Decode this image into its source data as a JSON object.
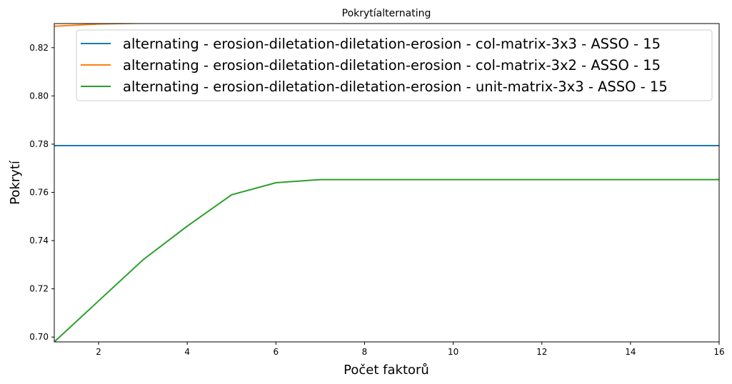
{
  "chart_data": {
    "type": "line",
    "title": "Pokrytíalternating",
    "xlabel": "Počet faktorů",
    "ylabel": "Pokrytí",
    "xlim": [
      1,
      16
    ],
    "ylim": [
      0.698,
      0.83
    ],
    "xticks": [
      2,
      4,
      6,
      8,
      10,
      12,
      14,
      16
    ],
    "yticks": [
      0.7,
      0.72,
      0.74,
      0.76,
      0.78,
      0.8,
      0.82
    ],
    "grid": false,
    "legend_position": "top-right",
    "series": [
      {
        "name": "alternating - erosion-diletation-diletation-erosion - col-matrix-3x3 - ASSO - 15",
        "color": "#1f77b4",
        "x": [
          1,
          2,
          3,
          4,
          5,
          6,
          7,
          8,
          9,
          10,
          11,
          12,
          13,
          14,
          15,
          16
        ],
        "y": [
          0.7794,
          0.7794,
          0.7794,
          0.7794,
          0.7794,
          0.7794,
          0.7794,
          0.7794,
          0.7794,
          0.7794,
          0.7794,
          0.7794,
          0.7794,
          0.7794,
          0.7794,
          0.7794
        ]
      },
      {
        "name": "alternating - erosion-diletation-diletation-erosion - col-matrix-3x2 - ASSO - 15",
        "color": "#ff7f0e",
        "x": [
          1,
          2,
          3,
          4,
          5,
          6,
          7,
          8,
          9,
          10,
          11,
          12,
          13,
          14,
          15,
          16
        ],
        "y": [
          0.8289,
          0.8298,
          0.8302,
          0.8304,
          0.8305,
          0.8305,
          0.8305,
          0.8305,
          0.8305,
          0.8305,
          0.8305,
          0.8305,
          0.8305,
          0.8305,
          0.8305,
          0.8305
        ]
      },
      {
        "name": "alternating - erosion-diletation-diletation-erosion - unit-matrix-3x3 - ASSO - 15",
        "color": "#2ca02c",
        "x": [
          1,
          2,
          3,
          4,
          5,
          6,
          7,
          8,
          9,
          10,
          11,
          12,
          13,
          14,
          15,
          16
        ],
        "y": [
          0.698,
          0.715,
          0.732,
          0.746,
          0.759,
          0.764,
          0.7653,
          0.7653,
          0.7653,
          0.7653,
          0.7653,
          0.7653,
          0.7653,
          0.7653,
          0.7653,
          0.7653
        ]
      }
    ]
  }
}
